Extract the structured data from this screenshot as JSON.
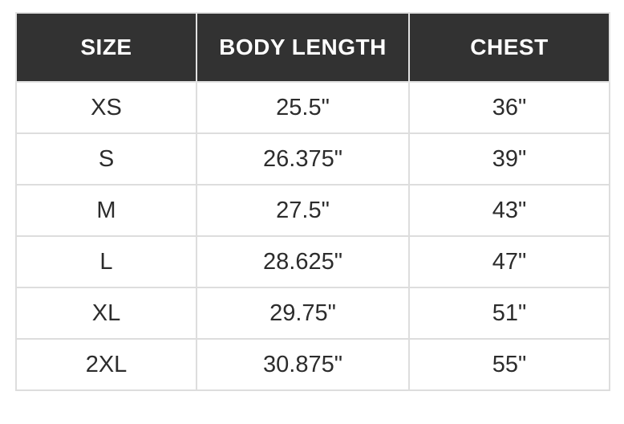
{
  "size_chart": {
    "columns": [
      {
        "id": "size",
        "label": "SIZE"
      },
      {
        "id": "body_length",
        "label": "BODY LENGTH"
      },
      {
        "id": "chest",
        "label": "CHEST"
      }
    ],
    "rows": [
      {
        "size": "XS",
        "body_length": "25.5\"",
        "chest": "36\""
      },
      {
        "size": "S",
        "body_length": "26.375\"",
        "chest": "39\""
      },
      {
        "size": "M",
        "body_length": "27.5\"",
        "chest": "43\""
      },
      {
        "size": "L",
        "body_length": "28.625\"",
        "chest": "47\""
      },
      {
        "size": "XL",
        "body_length": "29.75\"",
        "chest": "51\""
      },
      {
        "size": "2XL",
        "body_length": "30.875\"",
        "chest": "55\""
      }
    ]
  },
  "colors": {
    "header_background": "#323232",
    "header_text": "#ffffff",
    "body_text": "#2c2c2c",
    "border": "#dddddd",
    "page_background": "#ffffff"
  },
  "chart_data": {
    "type": "table",
    "title": "",
    "columns": [
      "SIZE",
      "BODY LENGTH",
      "CHEST"
    ],
    "rows": [
      [
        "XS",
        "25.5\"",
        "36\""
      ],
      [
        "S",
        "26.375\"",
        "39\""
      ],
      [
        "M",
        "27.5\"",
        "43\""
      ],
      [
        "L",
        "28.625\"",
        "47\""
      ],
      [
        "XL",
        "29.75\"",
        "51\""
      ],
      [
        "2XL",
        "30.875\"",
        "55\""
      ]
    ],
    "units": "inches",
    "notes_visible_in_image": "header row dark with white bold uppercase labels; all cells center-aligned; light gray grid borders"
  }
}
